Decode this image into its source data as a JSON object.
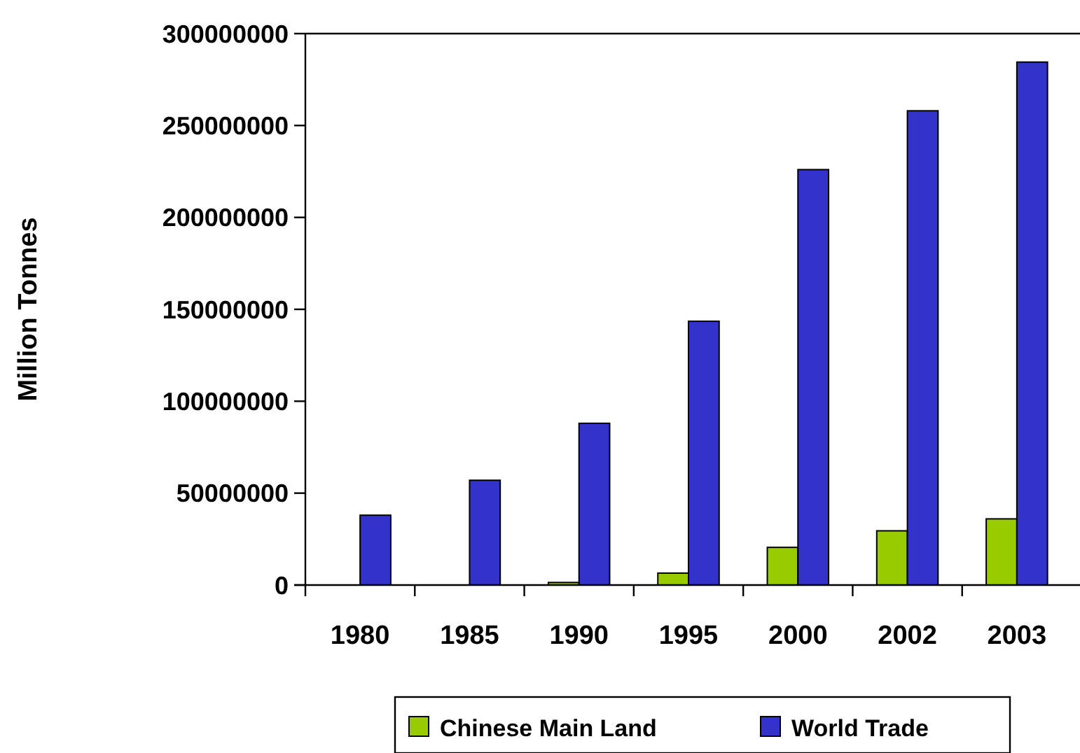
{
  "chart_data": {
    "type": "bar",
    "ylabel": "Million Tonnes",
    "categories": [
      "1980",
      "1985",
      "1990",
      "1995",
      "2000",
      "2002",
      "2003"
    ],
    "series": [
      {
        "name": "Chinese Main Land",
        "color": "#99cc00",
        "values": [
          0,
          0,
          1400000,
          6500000,
          20500000,
          29500000,
          36000000
        ]
      },
      {
        "name": "World Trade",
        "color": "#3333cc",
        "values": [
          38000000,
          57000000,
          88000000,
          143500000,
          226000000,
          258000000,
          284500000
        ]
      }
    ],
    "ylim": [
      0,
      300000000
    ],
    "yticks": [
      0,
      50000000,
      100000000,
      150000000,
      200000000,
      250000000,
      300000000
    ],
    "grid": false,
    "legend": "bottom"
  }
}
